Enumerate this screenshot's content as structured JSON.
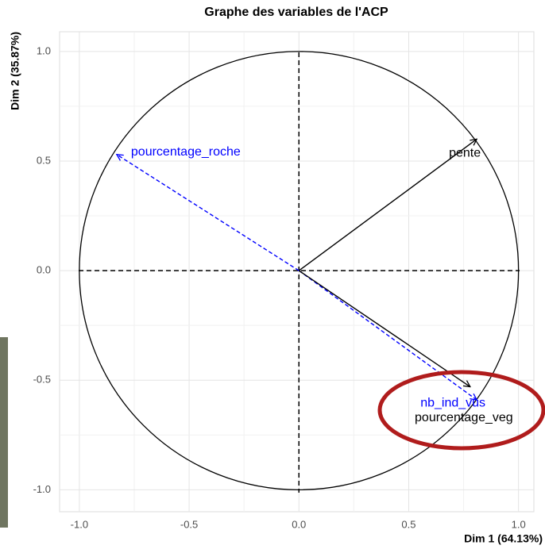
{
  "chart_data": {
    "type": "pca-variables",
    "title": "Graphe des variables de l'ACP",
    "x_label": "Dim 1 (64.13%)",
    "y_label": "Dim 2 (35.87%)",
    "xlim": [
      -1.09,
      1.07
    ],
    "ylim": [
      -1.1,
      1.09
    ],
    "xticks": [
      {
        "value": -1,
        "label": "-1.0"
      },
      {
        "value": -0.5,
        "label": "-0.5"
      },
      {
        "value": 0,
        "label": "0.0"
      },
      {
        "value": 0.5,
        "label": "0.5"
      },
      {
        "value": 1,
        "label": "1.0"
      }
    ],
    "yticks": [
      {
        "value": -1,
        "label": "-1.0"
      },
      {
        "value": -0.5,
        "label": "-0.5"
      },
      {
        "value": 0,
        "label": "0.0"
      },
      {
        "value": 0.5,
        "label": "0.5"
      },
      {
        "value": 1,
        "label": "1.0"
      }
    ],
    "grid": true,
    "variables": [
      {
        "label": "pente",
        "color": "#000000",
        "line": "solid",
        "x": 0.81,
        "y": 0.6
      },
      {
        "label": "pourcentage_roche",
        "color": "#0000ff",
        "line": "dashed",
        "x": -0.83,
        "y": 0.53
      },
      {
        "label": "nb_ind_vus",
        "color": "#0000ff",
        "line": "dashed",
        "x": 0.81,
        "y": -0.59
      },
      {
        "label": "pourcentage_veg",
        "color": "#000000",
        "line": "solid",
        "x": 0.78,
        "y": -0.53
      }
    ]
  }
}
